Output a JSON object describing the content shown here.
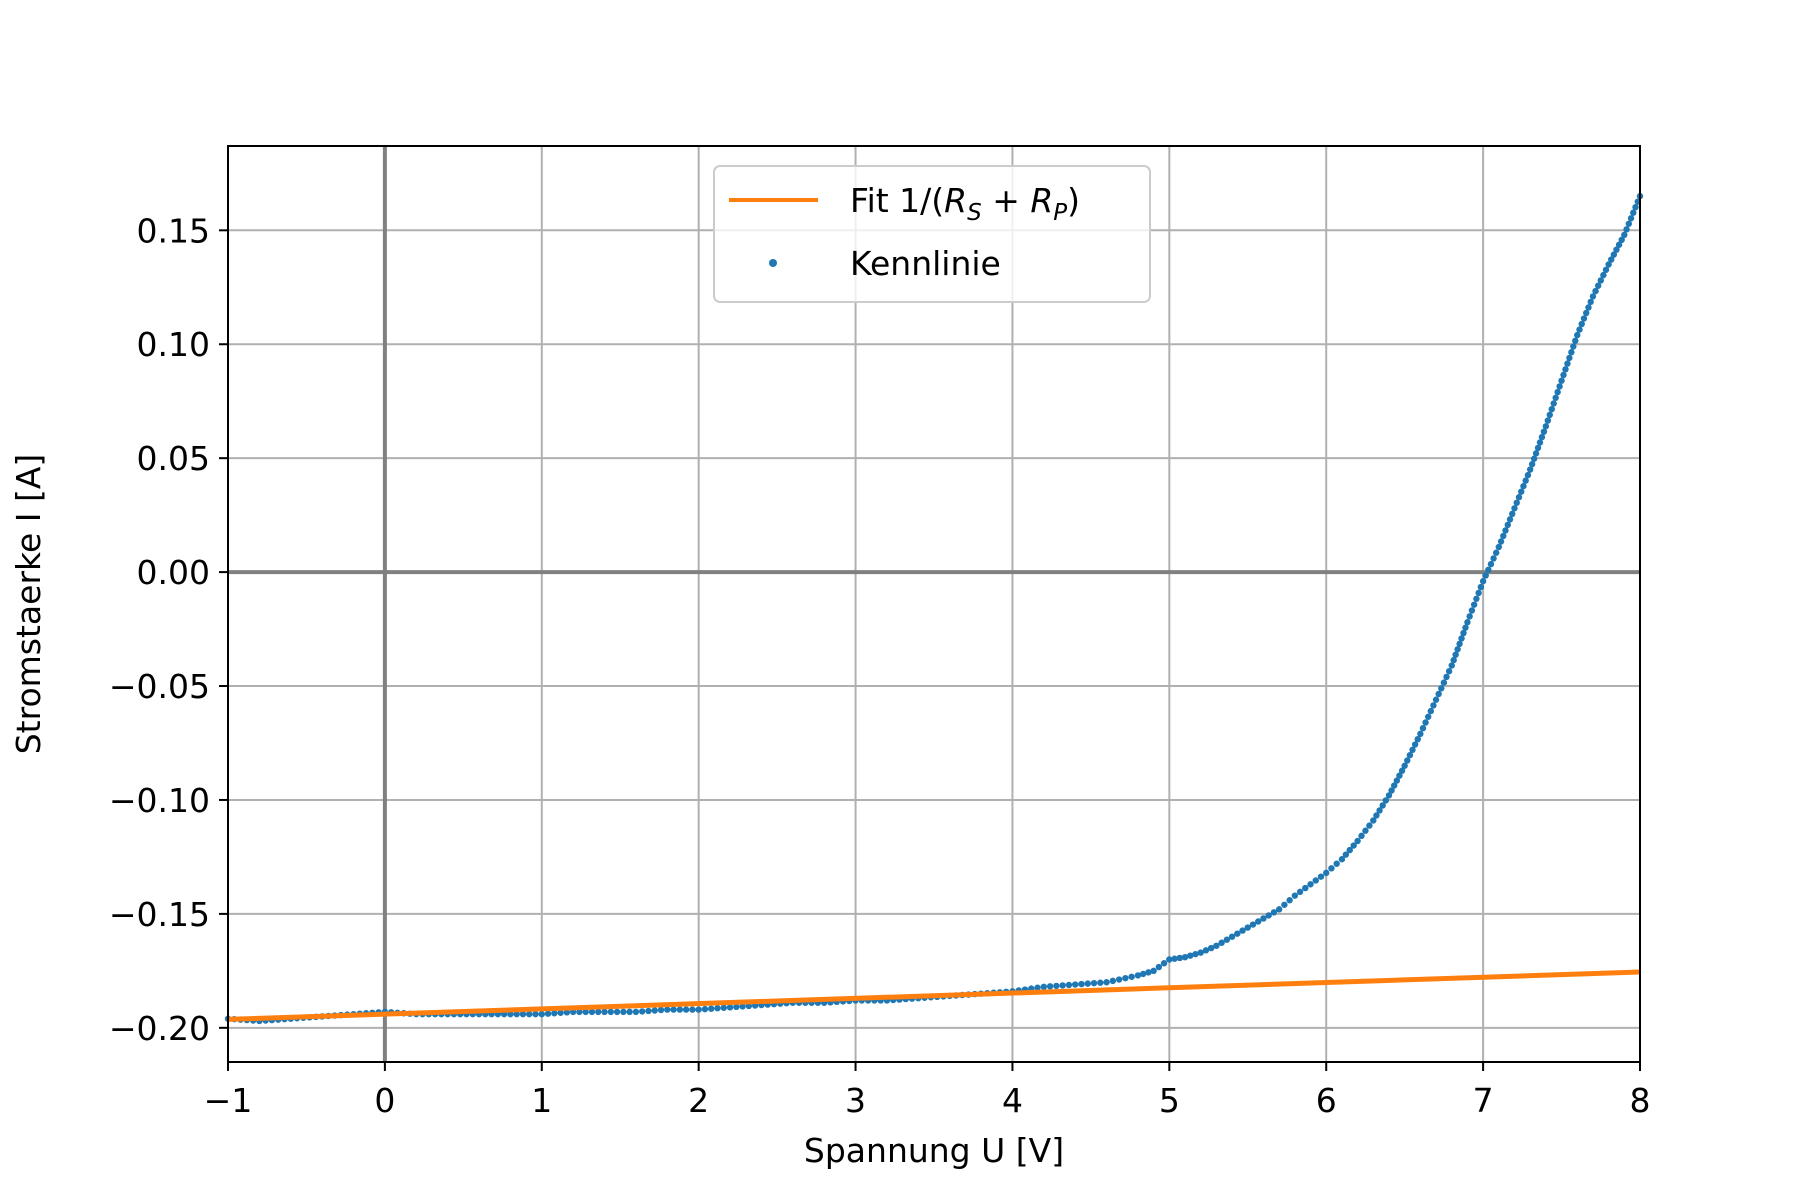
{
  "chart_data": {
    "type": "scatter",
    "xlabel": "Spannung U [V]",
    "ylabel": "Stromstaerke I [A]",
    "xlim": [
      -1,
      8
    ],
    "ylim": [
      -0.215,
      0.187
    ],
    "xticks": [
      -1,
      0,
      1,
      2,
      3,
      4,
      5,
      6,
      7,
      8
    ],
    "xtick_labels": [
      "−1",
      "0",
      "1",
      "2",
      "3",
      "4",
      "5",
      "6",
      "7",
      "8"
    ],
    "yticks": [
      0.15,
      0.1,
      0.05,
      0.0,
      -0.05,
      -0.1,
      -0.15,
      -0.2
    ],
    "ytick_labels": [
      "0.15",
      "0.10",
      "0.05",
      "0.00",
      "−0.05",
      "−0.10",
      "−0.15",
      "−0.20"
    ],
    "grid": true,
    "zero_lines": true,
    "legend_position": "top-center",
    "series": [
      {
        "name": "Fit 1/(R_S + R_P)",
        "legend_label": {
          "prefix": "Fit 1/(",
          "r1": "R",
          "s1": "S",
          "plus": " + ",
          "r2": "R",
          "s2": "P",
          "suffix": ")"
        },
        "kind": "line",
        "color": "#ff7f0e",
        "x": [
          -1,
          8
        ],
        "y": [
          -0.1963,
          -0.1755
        ]
      },
      {
        "name": "Kennlinie",
        "kind": "points",
        "color": "#1f77b4",
        "x": [
          -1.0,
          -0.8,
          -0.6,
          -0.4,
          -0.2,
          0.0,
          0.2,
          0.4,
          0.6,
          0.8,
          1.0,
          1.2,
          1.4,
          1.6,
          1.8,
          2.0,
          2.2,
          2.4,
          2.6,
          2.8,
          3.0,
          3.2,
          3.4,
          3.6,
          3.8,
          4.0,
          4.2,
          4.4,
          4.6,
          4.8,
          4.9,
          5.0,
          5.1,
          5.2,
          5.3,
          5.4,
          5.5,
          5.6,
          5.7,
          5.8,
          5.9,
          6.0,
          6.1,
          6.2,
          6.3,
          6.4,
          6.5,
          6.6,
          6.7,
          6.8,
          6.9,
          7.0,
          7.1,
          7.2,
          7.3,
          7.4,
          7.5,
          7.6,
          7.7,
          7.8,
          7.9,
          8.0
        ],
        "y": [
          -0.196,
          -0.197,
          -0.196,
          -0.195,
          -0.194,
          -0.193,
          -0.194,
          -0.194,
          -0.194,
          -0.194,
          -0.194,
          -0.193,
          -0.193,
          -0.193,
          -0.192,
          -0.192,
          -0.191,
          -0.19,
          -0.189,
          -0.189,
          -0.188,
          -0.188,
          -0.187,
          -0.186,
          -0.185,
          -0.184,
          -0.182,
          -0.181,
          -0.18,
          -0.177,
          -0.175,
          -0.17,
          -0.169,
          -0.167,
          -0.164,
          -0.16,
          -0.156,
          -0.152,
          -0.148,
          -0.142,
          -0.137,
          -0.132,
          -0.126,
          -0.118,
          -0.109,
          -0.098,
          -0.085,
          -0.071,
          -0.056,
          -0.041,
          -0.022,
          -0.004,
          0.011,
          0.028,
          0.045,
          0.064,
          0.084,
          0.104,
          0.121,
          0.135,
          0.148,
          0.165
        ]
      }
    ]
  }
}
